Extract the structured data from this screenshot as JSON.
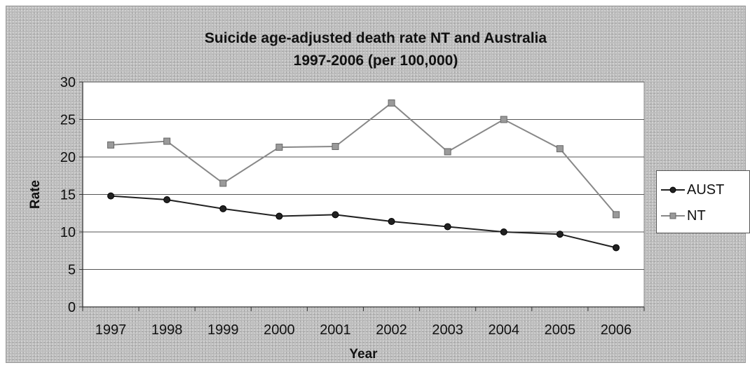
{
  "chart_data": {
    "type": "line",
    "title_line1": "Suicide age-adjusted death rate NT and Australia",
    "title_line2": "1997-2006 (per 100,000)",
    "xlabel": "Year",
    "ylabel": "Rate",
    "categories": [
      "1997",
      "1998",
      "1999",
      "2000",
      "2001",
      "2002",
      "2003",
      "2004",
      "2005",
      "2006"
    ],
    "ylim": [
      0,
      30
    ],
    "yticks": [
      0,
      5,
      10,
      15,
      20,
      25,
      30
    ],
    "grid": true,
    "legend_position": "right",
    "series": [
      {
        "name": "AUST",
        "color": "#222222",
        "marker": "circle",
        "values": [
          14.8,
          14.3,
          13.1,
          12.1,
          12.3,
          11.4,
          10.7,
          10.0,
          9.7,
          7.9
        ]
      },
      {
        "name": "NT",
        "color": "#888888",
        "marker": "square",
        "values": [
          21.6,
          22.1,
          16.5,
          21.3,
          21.4,
          27.2,
          20.7,
          25.0,
          21.1,
          12.3
        ]
      }
    ]
  }
}
